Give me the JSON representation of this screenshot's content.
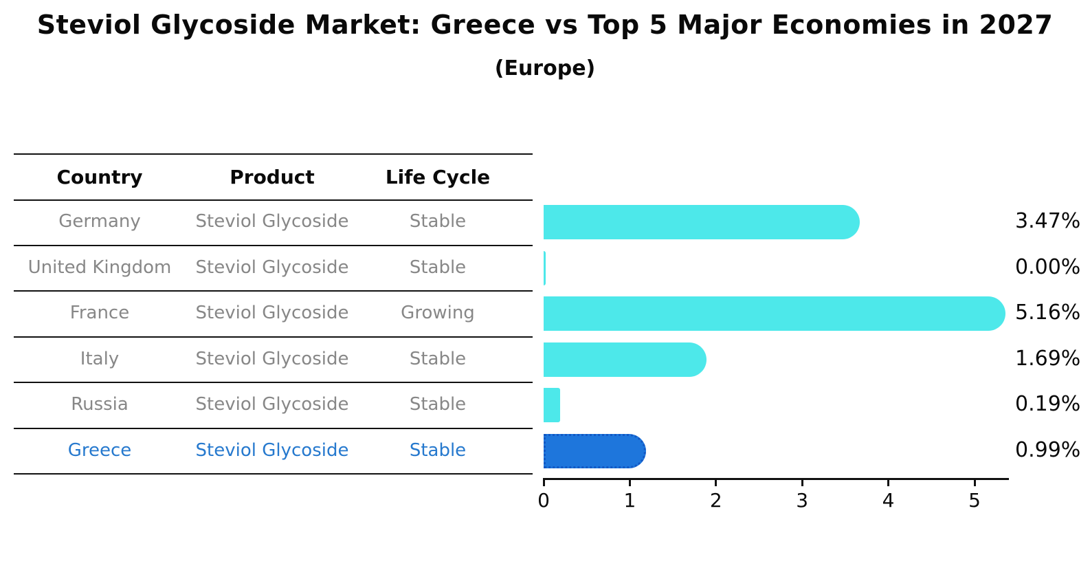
{
  "header": {
    "title": "Steviol Glycoside Market: Greece vs Top 5 Major Economies in 2027",
    "subtitle": "(Europe)"
  },
  "table": {
    "headers": [
      "Country",
      "Product",
      "Life Cycle"
    ],
    "rows": [
      {
        "country": "Germany",
        "product": "Steviol Glycoside",
        "life_cycle": "Stable",
        "highlighted": false
      },
      {
        "country": "United Kingdom",
        "product": "Steviol Glycoside",
        "life_cycle": "Stable",
        "highlighted": false
      },
      {
        "country": "France",
        "product": "Steviol Glycoside",
        "life_cycle": "Growing",
        "highlighted": false
      },
      {
        "country": "Italy",
        "product": "Steviol Glycoside",
        "life_cycle": "Stable",
        "highlighted": false
      },
      {
        "country": "Russia",
        "product": "Steviol Glycoside",
        "life_cycle": "Stable",
        "highlighted": false
      },
      {
        "country": "Greece",
        "product": "Steviol Glycoside",
        "life_cycle": "Stable",
        "highlighted": true
      }
    ]
  },
  "chart_data": {
    "type": "bar",
    "orientation": "horizontal",
    "title": "Steviol Glycoside Market: Greece vs Top 5 Major Economies in 2027 (Europe)",
    "categories": [
      "Germany",
      "United Kingdom",
      "France",
      "Italy",
      "Russia",
      "Greece"
    ],
    "values": [
      3.47,
      0.0,
      5.16,
      1.69,
      0.19,
      0.99
    ],
    "value_labels": [
      "3.47%",
      "0.00%",
      "5.16%",
      "1.69%",
      "0.19%",
      "0.99%"
    ],
    "highlight_index": 5,
    "xticks": [
      0,
      1,
      2,
      3,
      4,
      5
    ],
    "xlim": [
      0,
      5.4
    ],
    "xlabel": "",
    "ylabel": "",
    "grid": false,
    "legend": "none"
  },
  "colors": {
    "bar": "#4DE8EA",
    "highlight_bar": "#1E76DC",
    "highlight_border": "#1258C4",
    "table_text": "#878787",
    "highlight_text": "#2679CE",
    "line": "#111111",
    "text": "#0a0a0a",
    "background": "#ffffff"
  }
}
